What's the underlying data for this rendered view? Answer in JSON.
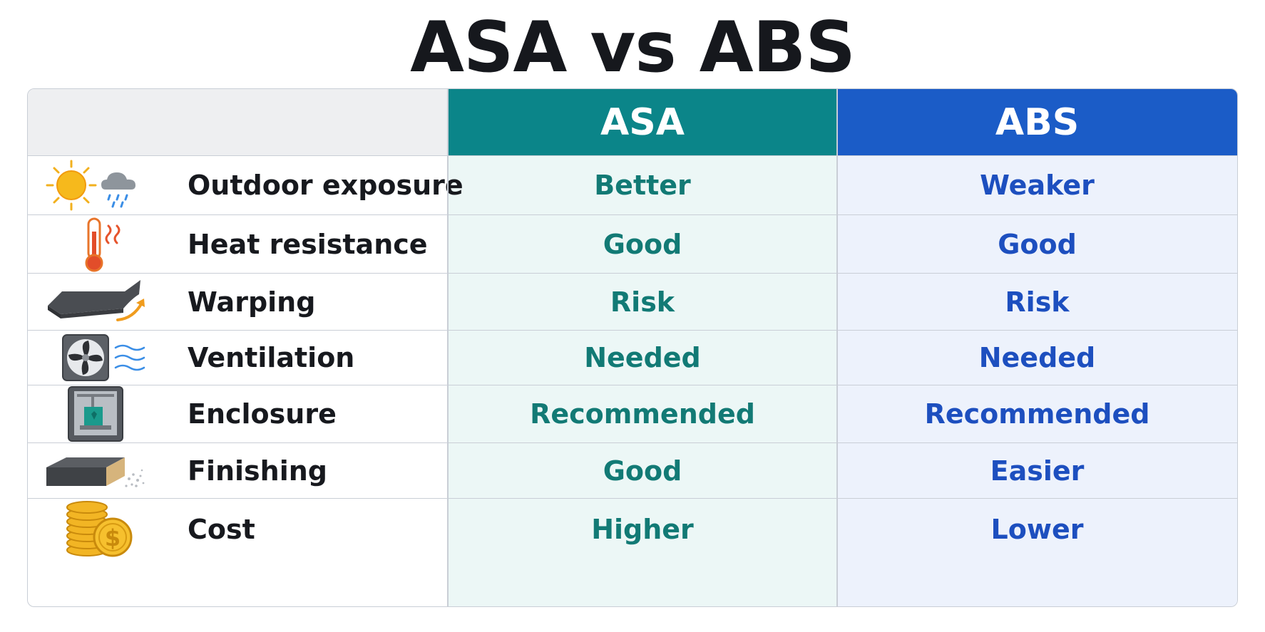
{
  "title": "ASA vs ABS",
  "colors": {
    "asa_header": "#0b8589",
    "abs_header": "#1b5cc7",
    "asa_text": "#127a75",
    "abs_text": "#1d4fbf",
    "asa_cell_bg": "#ecf7f6",
    "abs_cell_bg": "#edf2fc"
  },
  "table": {
    "headers": {
      "asa": "ASA",
      "abs": "ABS"
    },
    "rows": [
      {
        "icon": "sun-rain-icon",
        "label": "Outdoor exposure",
        "asa": "Better",
        "abs": "Weaker"
      },
      {
        "icon": "thermometer-icon",
        "label": "Heat resistance",
        "asa": "Good",
        "abs": "Good"
      },
      {
        "icon": "warped-sheet-icon",
        "label": "Warping",
        "asa": "Risk",
        "abs": "Risk"
      },
      {
        "icon": "fan-icon",
        "label": "Ventilation",
        "asa": "Needed",
        "abs": "Needed"
      },
      {
        "icon": "printer-enclosure-icon",
        "label": "Enclosure",
        "asa": "Recommended",
        "abs": "Recommended"
      },
      {
        "icon": "sanded-block-icon",
        "label": "Finishing",
        "asa": "Good",
        "abs": "Easier"
      },
      {
        "icon": "coins-icon",
        "label": "Cost",
        "asa": "Higher",
        "abs": "Lower"
      }
    ]
  }
}
